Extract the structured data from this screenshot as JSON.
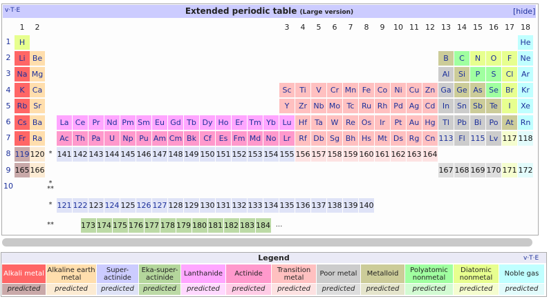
{
  "header": {
    "navbar": "v·T·E",
    "title": "Extended periodic table",
    "subtitle": "(Large version)",
    "toggle": "[hide]"
  },
  "groups": [
    1,
    2,
    3,
    4,
    5,
    6,
    7,
    8,
    9,
    10,
    11,
    12,
    13,
    14,
    15,
    16,
    17,
    18
  ],
  "table": {
    "rows": [
      {
        "label": 1,
        "cells": [
          [
            "H",
            10
          ],
          null,
          null,
          null,
          null,
          null,
          null,
          null,
          null,
          null,
          null,
          null,
          null,
          null,
          null,
          null,
          null,
          null,
          null,
          null,
          null,
          null,
          null,
          null,
          null,
          null,
          null,
          null,
          null,
          null,
          null,
          null,
          [
            "He",
            11
          ]
        ]
      },
      {
        "label": 2,
        "cells": [
          [
            "Li",
            0
          ],
          [
            "Be",
            1
          ],
          null,
          null,
          null,
          null,
          null,
          null,
          null,
          null,
          null,
          null,
          null,
          null,
          null,
          null,
          null,
          null,
          null,
          null,
          null,
          null,
          null,
          null,
          null,
          null,
          null,
          [
            "B",
            8
          ],
          [
            "C",
            9
          ],
          [
            "N",
            10
          ],
          [
            "O",
            10
          ],
          [
            "F",
            10
          ],
          [
            "Ne",
            11
          ]
        ]
      },
      {
        "label": 3,
        "cells": [
          [
            "Na",
            0
          ],
          [
            "Mg",
            1
          ],
          null,
          null,
          null,
          null,
          null,
          null,
          null,
          null,
          null,
          null,
          null,
          null,
          null,
          null,
          null,
          null,
          null,
          null,
          null,
          null,
          null,
          null,
          null,
          null,
          null,
          [
            "Al",
            7
          ],
          [
            "Si",
            8
          ],
          [
            "P",
            9
          ],
          [
            "S",
            9
          ],
          [
            "Cl",
            10
          ],
          [
            "Ar",
            11
          ]
        ]
      },
      {
        "label": 4,
        "cells": [
          [
            "K",
            0
          ],
          [
            "Ca",
            1
          ],
          null,
          null,
          null,
          null,
          null,
          null,
          null,
          null,
          null,
          null,
          null,
          null,
          null,
          null,
          null,
          [
            "Sc",
            6
          ],
          [
            "Ti",
            6
          ],
          [
            "V",
            6
          ],
          [
            "Cr",
            6
          ],
          [
            "Mn",
            6
          ],
          [
            "Fe",
            6
          ],
          [
            "Co",
            6
          ],
          [
            "Ni",
            6
          ],
          [
            "Cu",
            6
          ],
          [
            "Zn",
            6
          ],
          [
            "Ga",
            7
          ],
          [
            "Ge",
            8
          ],
          [
            "As",
            8
          ],
          [
            "Se",
            9
          ],
          [
            "Br",
            10
          ],
          [
            "Kr",
            11
          ]
        ]
      },
      {
        "label": 5,
        "cells": [
          [
            "Rb",
            0
          ],
          [
            "Sr",
            1
          ],
          null,
          null,
          null,
          null,
          null,
          null,
          null,
          null,
          null,
          null,
          null,
          null,
          null,
          null,
          null,
          [
            "Y",
            6
          ],
          [
            "Zr",
            6
          ],
          [
            "Nb",
            6
          ],
          [
            "Mo",
            6
          ],
          [
            "Tc",
            6
          ],
          [
            "Ru",
            6
          ],
          [
            "Rh",
            6
          ],
          [
            "Pd",
            6
          ],
          [
            "Ag",
            6
          ],
          [
            "Cd",
            6
          ],
          [
            "In",
            7
          ],
          [
            "Sn",
            7
          ],
          [
            "Sb",
            8
          ],
          [
            "Te",
            8
          ],
          [
            "I",
            10
          ],
          [
            "Xe",
            11
          ]
        ]
      },
      {
        "label": 6,
        "cells": [
          [
            "Cs",
            0
          ],
          [
            "Ba",
            1
          ],
          null,
          [
            "La",
            4
          ],
          [
            "Ce",
            4
          ],
          [
            "Pr",
            4
          ],
          [
            "Nd",
            4
          ],
          [
            "Pm",
            4
          ],
          [
            "Sm",
            4
          ],
          [
            "Eu",
            4
          ],
          [
            "Gd",
            4
          ],
          [
            "Tb",
            4
          ],
          [
            "Dy",
            4
          ],
          [
            "Ho",
            4
          ],
          [
            "Er",
            4
          ],
          [
            "Tm",
            4
          ],
          [
            "Yb",
            4
          ],
          [
            "Lu",
            4
          ],
          [
            "Hf",
            6
          ],
          [
            "Ta",
            6
          ],
          [
            "W",
            6
          ],
          [
            "Re",
            6
          ],
          [
            "Os",
            6
          ],
          [
            "Ir",
            6
          ],
          [
            "Pt",
            6
          ],
          [
            "Au",
            6
          ],
          [
            "Hg",
            6
          ],
          [
            "Tl",
            7
          ],
          [
            "Pb",
            7
          ],
          [
            "Bi",
            7
          ],
          [
            "Po",
            7
          ],
          [
            "At",
            8
          ],
          [
            "Rn",
            11
          ]
        ]
      },
      {
        "label": 7,
        "cells": [
          [
            "Fr",
            0
          ],
          [
            "Ra",
            1
          ],
          null,
          [
            "Ac",
            5
          ],
          [
            "Th",
            5
          ],
          [
            "Pa",
            5
          ],
          [
            "U",
            5
          ],
          [
            "Np",
            5
          ],
          [
            "Pu",
            5
          ],
          [
            "Am",
            5
          ],
          [
            "Cm",
            5
          ],
          [
            "Bk",
            5
          ],
          [
            "Cf",
            5
          ],
          [
            "Es",
            5
          ],
          [
            "Fm",
            5
          ],
          [
            "Md",
            5
          ],
          [
            "No",
            5
          ],
          [
            "Lr",
            5
          ],
          [
            "Rf",
            6
          ],
          [
            "Db",
            6
          ],
          [
            "Sg",
            6
          ],
          [
            "Bh",
            6
          ],
          [
            "Hs",
            6
          ],
          [
            "Mt",
            6
          ],
          [
            "Ds",
            6
          ],
          [
            "Rg",
            6
          ],
          [
            "Cn",
            6
          ],
          [
            113,
            7,
            1,
            1
          ],
          [
            "Fl",
            7
          ],
          [
            115,
            7,
            1,
            1
          ],
          [
            "Lv",
            7
          ],
          [
            117,
            10,
            1
          ],
          [
            118,
            11,
            1
          ]
        ]
      },
      {
        "label": 8,
        "cells": [
          [
            119,
            0,
            1,
            1
          ],
          [
            120,
            1,
            1
          ],
          "*",
          [
            141,
            2,
            1
          ],
          [
            142,
            2,
            1
          ],
          [
            143,
            2,
            1
          ],
          [
            144,
            2,
            1
          ],
          [
            145,
            2,
            1
          ],
          [
            146,
            2,
            1
          ],
          [
            147,
            2,
            1
          ],
          [
            148,
            2,
            1
          ],
          [
            149,
            2,
            1
          ],
          [
            150,
            2,
            1
          ],
          [
            151,
            2,
            1
          ],
          [
            152,
            2,
            1
          ],
          [
            153,
            2,
            1
          ],
          [
            154,
            2,
            1
          ],
          [
            155,
            2,
            1
          ],
          [
            156,
            6,
            1
          ],
          [
            157,
            6,
            1
          ],
          [
            158,
            6,
            1
          ],
          [
            159,
            6,
            1
          ],
          [
            160,
            6,
            1
          ],
          [
            161,
            6,
            1
          ],
          [
            162,
            6,
            1
          ],
          [
            163,
            6,
            1
          ],
          [
            164,
            6,
            1
          ]
        ]
      },
      {
        "label": 9,
        "cells": [
          [
            165,
            0,
            1
          ],
          [
            166,
            1,
            1
          ],
          null,
          null,
          null,
          null,
          null,
          null,
          null,
          null,
          null,
          null,
          null,
          null,
          null,
          null,
          null,
          null,
          null,
          null,
          null,
          null,
          null,
          null,
          null,
          null,
          null,
          [
            167,
            7,
            1
          ],
          [
            168,
            7,
            1
          ],
          [
            169,
            7,
            1
          ],
          [
            170,
            7,
            1
          ],
          [
            171,
            10,
            1
          ],
          [
            172,
            11,
            1
          ]
        ]
      },
      {
        "label": 10,
        "cells": [
          null,
          null,
          "*\n**"
        ]
      },
      {
        "label": null,
        "cells": [
          null,
          null,
          "*",
          [
            121,
            2,
            1,
            1
          ],
          [
            122,
            2,
            1,
            1
          ],
          [
            123,
            2,
            1
          ],
          [
            124,
            2,
            1,
            1
          ],
          [
            125,
            2,
            1
          ],
          [
            126,
            2,
            1,
            1
          ],
          [
            127,
            2,
            1,
            1
          ],
          [
            128,
            2,
            1
          ],
          [
            129,
            2,
            1
          ],
          [
            130,
            2,
            1
          ],
          [
            131,
            2,
            1
          ],
          [
            132,
            2,
            1
          ],
          [
            133,
            2,
            1
          ],
          [
            134,
            2,
            1
          ],
          [
            135,
            2,
            1
          ],
          [
            136,
            2,
            1
          ],
          [
            137,
            2,
            1
          ],
          [
            138,
            2,
            1
          ],
          [
            139,
            2,
            1
          ],
          [
            140,
            2,
            1
          ]
        ]
      },
      {
        "label": null,
        "cells": [
          null,
          null,
          "**",
          null,
          [
            173,
            3,
            1
          ],
          [
            174,
            3,
            1
          ],
          [
            175,
            3,
            1
          ],
          [
            176,
            3,
            1
          ],
          [
            177,
            3,
            1
          ],
          [
            178,
            3,
            1
          ],
          [
            179,
            3,
            1
          ],
          [
            180,
            3,
            1
          ],
          [
            181,
            3,
            1
          ],
          [
            182,
            3,
            1
          ],
          [
            183,
            3,
            1
          ],
          [
            184,
            3,
            1
          ],
          "..."
        ]
      }
    ]
  },
  "legend": {
    "title": "Legend",
    "navbar": "v·T·E",
    "items": [
      {
        "label": "Alkali metal",
        "color": "#ff6666",
        "predicted_color": "#c9a9a9",
        "predicted": "predicted",
        "text_color": "#ffffff"
      },
      {
        "label": "Alkaline earth metal",
        "color": "#ffdead",
        "predicted_color": "#fcebd3",
        "predicted": "predicted"
      },
      {
        "label": "Super-actinide",
        "color": "#ccccff",
        "predicted_color": "#dfe3f7",
        "predicted": "predicted"
      },
      {
        "label": "Eka-super-actinide",
        "color": "#b4d69c",
        "predicted_color": "#bcdaa6",
        "predicted": "predicted"
      },
      {
        "label": "Lanthanide",
        "color": "#ffa6ff",
        "predicted_color": "#ffd9ff",
        "predicted": "predicted"
      },
      {
        "label": "Actinide",
        "color": "#ff99cc",
        "predicted_color": "#ffcce6",
        "predicted": "predicted"
      },
      {
        "label": "Transition metal",
        "color": "#ffc0c0",
        "predicted_color": "#fde2e2",
        "predicted": "predicted"
      },
      {
        "label": "Poor metal",
        "color": "#cccccc",
        "predicted_color": "#dedede",
        "predicted": "predicted"
      },
      {
        "label": "Metalloid",
        "color": "#cccc99",
        "predicted_color": "#e5e5cc",
        "predicted": "predicted"
      },
      {
        "label": "Polyatomic nonmetal",
        "color": "#a0ffa0",
        "predicted_color": "#d3fbd3",
        "predicted": "predicted"
      },
      {
        "label": "Diatomic nonmetal",
        "color": "#e7ff8f",
        "predicted_color": "#f5fdcf",
        "predicted": "predicted"
      },
      {
        "label": "Noble gas",
        "color": "#c0ffff",
        "predicted_color": "#e2fbfb",
        "predicted": "predicted"
      }
    ]
  }
}
